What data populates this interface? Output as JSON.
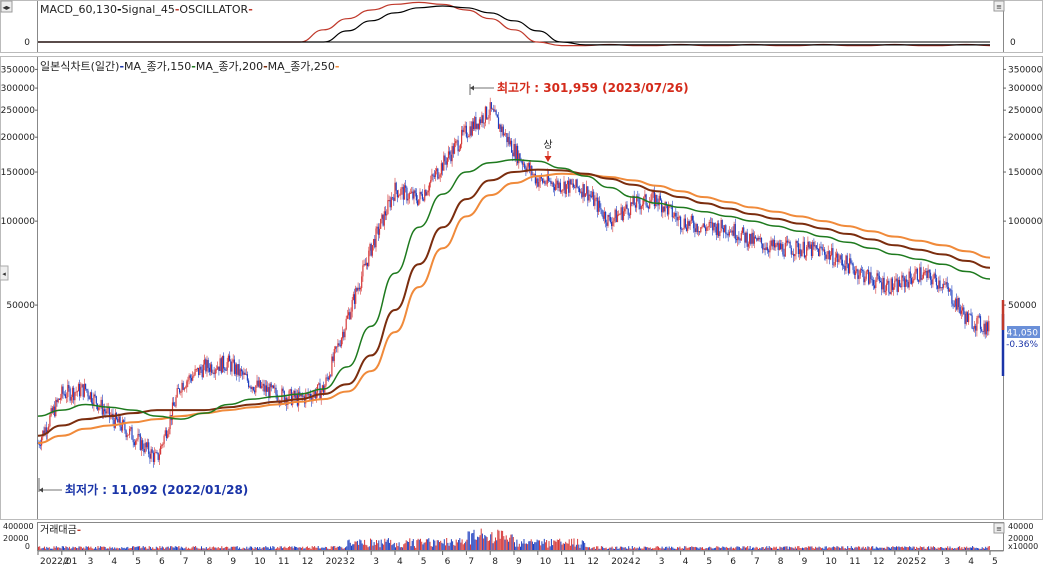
{
  "colors": {
    "ma150": "#1e7a1e",
    "ma200": "#7b2d0e",
    "ma250": "#f08a3a",
    "macd": "#000000",
    "signal": "#c0392b",
    "bull": "#d63a3a",
    "bear": "#2040c0",
    "high_label": "#d42a1a",
    "low_label": "#1a34a8",
    "price_box": "#6a8fd8"
  },
  "macd_panel": {
    "title_parts": [
      "MACD_60,130",
      "Signal_45",
      "OSCILLATOR"
    ],
    "separator": "-",
    "zero_label_left": "0",
    "zero_label_right": "0"
  },
  "price_panel": {
    "title_parts": [
      "일본식차트(일간)",
      "MA_종가,150",
      "MA_종가,200",
      "MA_종가,250"
    ],
    "separator": "-",
    "high_label": "최고가 : 301,959 (2023/07/26)",
    "low_label": "최저가 : 11,092 (2022/01/28)",
    "signal_marker": "상",
    "current_price": "41,050",
    "change_pct": "-0.36%",
    "y_ticks_left": [
      "350000",
      "300000",
      "250000",
      "200000",
      "150000",
      "100000",
      "50000"
    ],
    "y_ticks_right": [
      "350000",
      "300000",
      "250000",
      "200000",
      "150000",
      "100000",
      "50000"
    ]
  },
  "volume_panel": {
    "title": "거래대금",
    "separator": "-",
    "y_ticks": [
      "400000",
      "20000",
      "0"
    ],
    "y_ticks_right": [
      "40000",
      "20000"
    ],
    "unit_label": "x10000"
  },
  "x_axis": {
    "labels": [
      "2022/01",
      "2",
      "3",
      "4",
      "5",
      "6",
      "7",
      "8",
      "9",
      "10",
      "11",
      "12",
      "2023",
      "2",
      "3",
      "4",
      "5",
      "6",
      "7",
      "8",
      "9",
      "10",
      "11",
      "12",
      "2024",
      "2",
      "3",
      "4",
      "5",
      "6",
      "7",
      "8",
      "9",
      "10",
      "11",
      "12",
      "2025",
      "2",
      "3",
      "4",
      "5"
    ]
  },
  "chart_data": {
    "type": "line",
    "title": "일본식차트(일간)",
    "x": [
      "2022/01",
      "2",
      "3",
      "4",
      "5",
      "6",
      "7",
      "8",
      "9",
      "10",
      "11",
      "12",
      "2023",
      "2",
      "3",
      "4",
      "5",
      "6",
      "7",
      "8",
      "9",
      "10",
      "11",
      "12",
      "2024",
      "2",
      "3",
      "4",
      "5",
      "6",
      "7",
      "8",
      "9",
      "10",
      "11",
      "12",
      "2025",
      "2",
      "3",
      "4",
      "5"
    ],
    "series": [
      {
        "name": "일본식차트(일간)",
        "values": [
          16000,
          24000,
          25000,
          20000,
          17000,
          14000,
          26000,
          30000,
          31000,
          26000,
          24000,
          23000,
          25000,
          45000,
          80000,
          130000,
          120000,
          160000,
          210000,
          250000,
          180000,
          140000,
          135000,
          130000,
          100000,
          115000,
          120000,
          100000,
          95000,
          95000,
          85000,
          80000,
          80000,
          78000,
          70000,
          62000,
          58000,
          65000,
          60000,
          45000,
          41050
        ]
      },
      {
        "name": "MA_종가,150",
        "values": [
          20000,
          21000,
          22000,
          21500,
          21000,
          20000,
          19500,
          20500,
          22000,
          23000,
          23500,
          24000,
          25000,
          30000,
          42000,
          65000,
          95000,
          125000,
          150000,
          162000,
          166000,
          164000,
          155000,
          145000,
          132000,
          122000,
          116000,
          112000,
          108000,
          104000,
          100000,
          96000,
          92000,
          88000,
          84000,
          80000,
          76000,
          73000,
          70000,
          66000,
          62000
        ]
      },
      {
        "name": "MA_종가,200",
        "values": [
          17000,
          18500,
          19500,
          20000,
          20500,
          21000,
          21000,
          21000,
          21500,
          22000,
          22500,
          23000,
          24000,
          26000,
          33000,
          48000,
          70000,
          95000,
          120000,
          140000,
          150000,
          153000,
          152000,
          148000,
          142000,
          135000,
          128000,
          122000,
          116000,
          111000,
          106000,
          102000,
          98000,
          94000,
          90000,
          86000,
          82000,
          79000,
          76000,
          72000,
          68000
        ]
      },
      {
        "name": "MA_종가,250",
        "values": [
          16000,
          17000,
          18000,
          18500,
          19000,
          19500,
          20000,
          20500,
          21000,
          21500,
          22000,
          22500,
          23000,
          24500,
          29000,
          40000,
          58000,
          80000,
          104000,
          124000,
          137000,
          145000,
          148000,
          147000,
          144000,
          140000,
          134000,
          128000,
          122000,
          117000,
          112000,
          108000,
          104000,
          100000,
          96000,
          92000,
          88000,
          85000,
          82000,
          78000,
          74000
        ]
      }
    ],
    "yticks": [
      350000,
      300000,
      250000,
      200000,
      150000,
      100000,
      50000
    ],
    "ylim": [
      10000,
      360000
    ],
    "high": {
      "label": "최고가 : 301,959 (2023/07/26)",
      "value": 301959,
      "date": "2023/07/26"
    },
    "low": {
      "label": "최저가 : 11,092 (2022/01/28)",
      "value": 11092,
      "date": "2022/01/28"
    },
    "last": {
      "value": 41050,
      "change": "-0.36%"
    },
    "macd": {
      "title": "MACD_60,130",
      "signal_title": "Signal_45",
      "oscillator_title": "OSCILLATOR"
    },
    "volume_title": "거래대금"
  }
}
